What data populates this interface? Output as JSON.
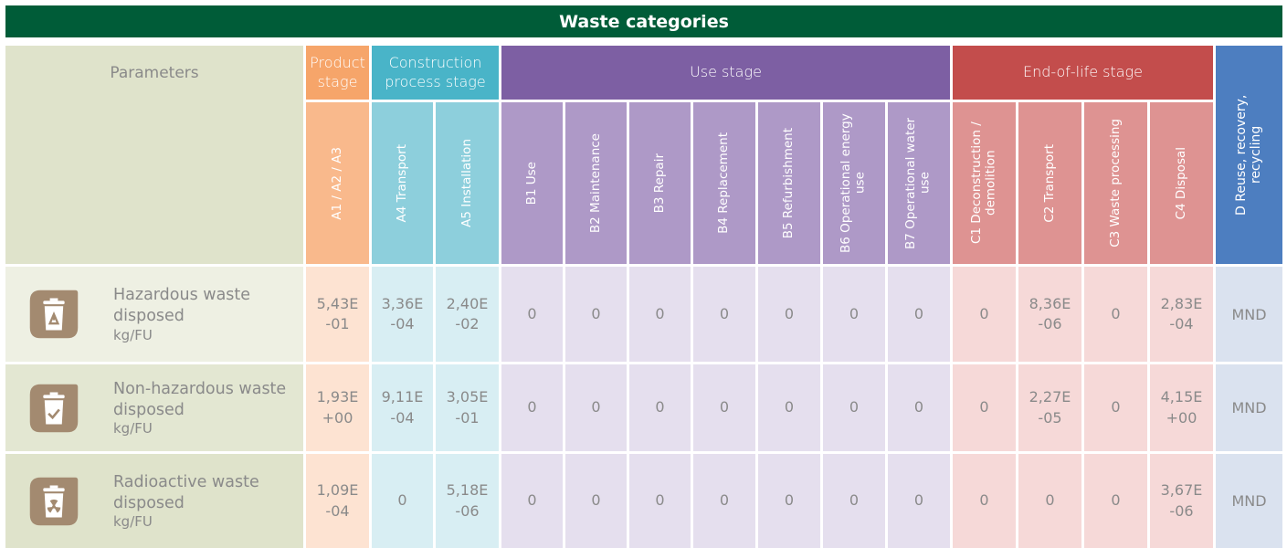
{
  "title": "Waste categories",
  "parameters_header": "Parameters",
  "stages": [
    {
      "label": "Product stage",
      "columns": [
        "A1 / A2 / A3"
      ]
    },
    {
      "label": "Construction process stage",
      "columns": [
        "A4 Transport",
        "A5 Installation"
      ]
    },
    {
      "label": "Use stage",
      "columns": [
        "B1 Use",
        "B2 Maintenance",
        "B3 Repair",
        "B4 Replacement",
        "B5 Refurbishment",
        "B6 Operational energy use",
        "B7 Operational water use"
      ]
    },
    {
      "label": "End-of-life stage",
      "columns": [
        "C1 Deconstruction / demolition",
        "C2 Transport",
        "C3 Waste processing",
        "C4 Disposal"
      ]
    }
  ],
  "d_column": "D Reuse, recovery, recycling",
  "rows": [
    {
      "name": "Hazardous waste disposed",
      "unit": "kg/FU",
      "values": [
        "5,43E\n-01",
        "3,36E\n-04",
        "2,40E\n-02",
        "0",
        "0",
        "0",
        "0",
        "0",
        "0",
        "0",
        "0",
        "8,36E\n-06",
        "0",
        "2,83E\n-04",
        "MND"
      ]
    },
    {
      "name": "Non-hazardous waste disposed",
      "unit": "kg/FU",
      "values": [
        "1,93E\n+00",
        "9,11E\n-04",
        "3,05E\n-01",
        "0",
        "0",
        "0",
        "0",
        "0",
        "0",
        "0",
        "0",
        "2,27E\n-05",
        "0",
        "4,15E\n+00",
        "MND"
      ]
    },
    {
      "name": "Radioactive waste disposed",
      "unit": "kg/FU",
      "values": [
        "1,09E\n-04",
        "0",
        "5,18E\n-06",
        "0",
        "0",
        "0",
        "0",
        "0",
        "0",
        "0",
        "0",
        "0",
        "0",
        "3,67E\n-06",
        "MND"
      ]
    }
  ]
}
